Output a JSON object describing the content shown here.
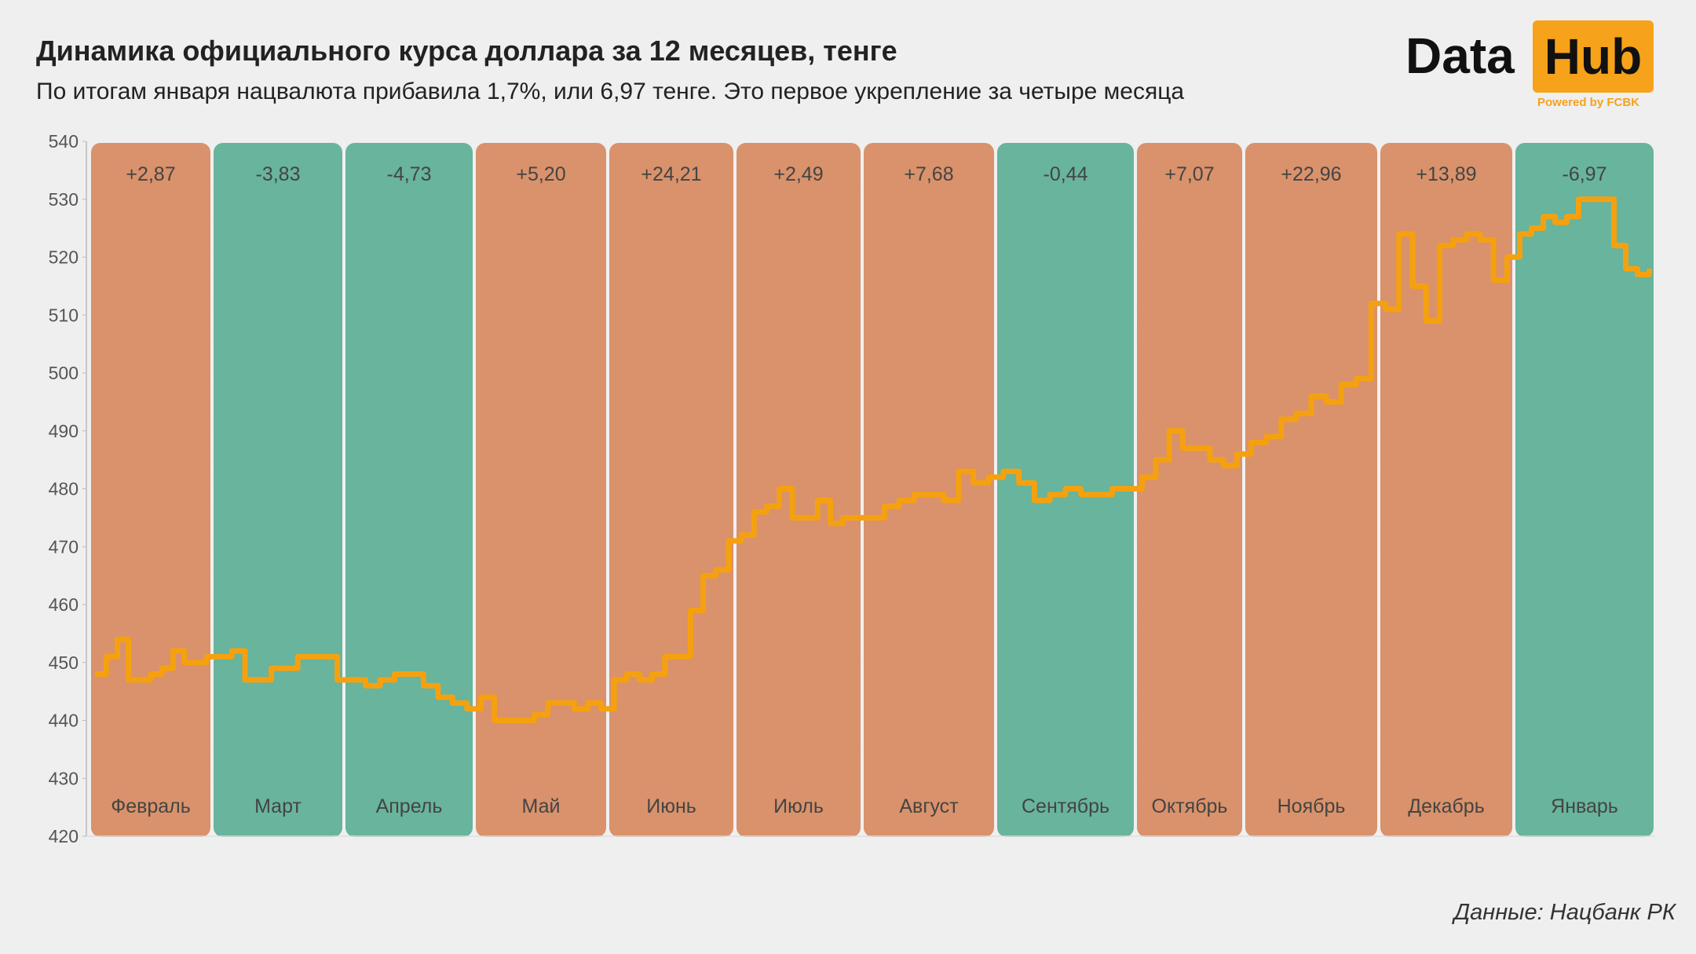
{
  "header": {
    "title": "Динамика официального курса доллара за 12 месяцев, тенге",
    "subtitle": "По итогам января нацвалюта прибавила 1,7%, или 6,97 тенге. Это первое укрепление за четыре месяца"
  },
  "logo": {
    "text_left": "Data",
    "text_right": "Hub",
    "tagline": "Powered by FCBK"
  },
  "source": "Данные: Нацбанк РК",
  "colors": {
    "rise": "#d9926b",
    "fall": "#68b49c",
    "line": "#f5a10f",
    "background": "#efefef"
  },
  "chart_data": {
    "type": "line",
    "ylim": [
      420,
      540
    ],
    "yticks": [
      420,
      430,
      440,
      450,
      460,
      470,
      480,
      490,
      500,
      510,
      520,
      530,
      540
    ],
    "grid": false,
    "months": [
      {
        "label": "Февраль",
        "change": "+2,87",
        "trend": "rise",
        "values": [
          448,
          451,
          454,
          447,
          447,
          448,
          449,
          452,
          450,
          450,
          451
        ]
      },
      {
        "label": "Март",
        "change": "-3,83",
        "trend": "fall",
        "values": [
          451,
          452,
          447,
          447,
          449,
          449,
          451,
          451,
          451,
          447
        ]
      },
      {
        "label": "Апрель",
        "change": "-4,73",
        "trend": "fall",
        "values": [
          447,
          446,
          447,
          448,
          448,
          446,
          444,
          443,
          442
        ]
      },
      {
        "label": "Май",
        "change": "+5,20",
        "trend": "rise",
        "values": [
          444,
          440,
          440,
          440,
          441,
          443,
          443,
          442,
          443,
          442
        ]
      },
      {
        "label": "Июнь",
        "change": "+24,21",
        "trend": "rise",
        "values": [
          447,
          448,
          447,
          448,
          451,
          451,
          459,
          465,
          466,
          471
        ]
      },
      {
        "label": "Июль",
        "change": "+2,49",
        "trend": "rise",
        "values": [
          472,
          476,
          477,
          480,
          475,
          475,
          478,
          474,
          475,
          475
        ]
      },
      {
        "label": "Август",
        "change": "+7,68",
        "trend": "rise",
        "values": [
          475,
          477,
          478,
          479,
          479,
          478,
          483,
          481,
          482
        ]
      },
      {
        "label": "Сентябрь",
        "change": "-0,44",
        "trend": "fall",
        "values": [
          483,
          481,
          478,
          479,
          480,
          479,
          479,
          480,
          480
        ]
      },
      {
        "label": "Октябрь",
        "change": "+7,07",
        "trend": "rise",
        "values": [
          482,
          485,
          490,
          487,
          487,
          485,
          484,
          486
        ]
      },
      {
        "label": "Ноябрь",
        "change": "+22,96",
        "trend": "rise",
        "values": [
          488,
          489,
          492,
          493,
          496,
          495,
          498,
          499,
          512
        ]
      },
      {
        "label": "Декабрь",
        "change": "+13,89",
        "trend": "rise",
        "values": [
          511,
          524,
          515,
          509,
          522,
          523,
          524,
          523,
          516,
          520
        ]
      },
      {
        "label": "Январь",
        "change": "-6,97",
        "trend": "fall",
        "values": [
          524,
          525,
          527,
          526,
          527,
          530,
          530,
          530,
          522,
          518,
          517,
          518
        ]
      }
    ]
  }
}
